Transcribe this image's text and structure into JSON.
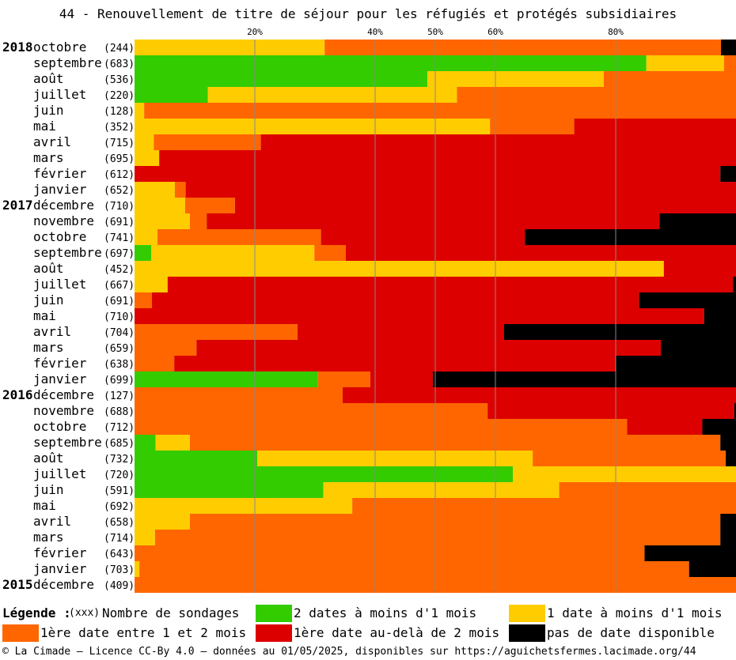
{
  "title": "44 - Renouvellement de titre de séjour pour les réfugiés et protégés subsidiaires",
  "legend": {
    "heading": "Légende :",
    "count_code": "(xxx)",
    "count_label": "Nombre de sondages",
    "items": [
      {
        "label": "2 dates à moins d'1 mois",
        "color": "#33cc00"
      },
      {
        "label": "1 date à moins d'1 mois",
        "color": "#ffcc00"
      },
      {
        "label": "1ère date entre 1 et 2 mois",
        "color": "#ff6600"
      },
      {
        "label": "1ère date au-delà de 2 mois",
        "color": "#dd0000"
      },
      {
        "label": "pas de date disponible",
        "color": "#000000"
      }
    ]
  },
  "footer": "© La Cimade — Licence CC-By 4.0 — données au 01/05/2025, disponibles sur https://aguichetsfermes.lacimade.org/44",
  "chart_data": {
    "type": "bar",
    "orientation": "horizontal-stacked-100",
    "xticks": [
      "20%",
      "40%",
      "50%",
      "60%",
      "80%"
    ],
    "xtick_values": [
      20,
      40,
      50,
      60,
      80
    ],
    "xlim": [
      0,
      100
    ],
    "grid": true,
    "series_names": [
      "2 dates à moins d'1 mois",
      "1 date à moins d'1 mois",
      "1ère date entre 1 et 2 mois",
      "1ère date au-delà de 2 mois",
      "pas de date disponible"
    ],
    "rows": [
      {
        "year": "2018",
        "month": "octobre",
        "count": "(244)",
        "values": [
          0,
          31.6,
          65.9,
          0,
          2.5
        ]
      },
      {
        "year": "",
        "month": "septembre",
        "count": "(683)",
        "values": [
          85.1,
          12.9,
          2.0,
          0,
          0
        ]
      },
      {
        "year": "",
        "month": "août",
        "count": "(536)",
        "values": [
          48.7,
          29.3,
          22.0,
          0,
          0
        ]
      },
      {
        "year": "",
        "month": "juillet",
        "count": "(220)",
        "values": [
          12.2,
          41.4,
          46.4,
          0,
          0
        ]
      },
      {
        "year": "",
        "month": "juin",
        "count": "(128)",
        "values": [
          0,
          1.6,
          98.4,
          0,
          0
        ]
      },
      {
        "year": "",
        "month": "mai",
        "count": "(352)",
        "values": [
          0,
          59.1,
          14.0,
          26.9,
          0
        ]
      },
      {
        "year": "",
        "month": "avril",
        "count": "(715)",
        "values": [
          0,
          3.2,
          17.8,
          79.0,
          0
        ]
      },
      {
        "year": "",
        "month": "mars",
        "count": "(695)",
        "values": [
          0,
          4.1,
          0,
          95.9,
          0
        ]
      },
      {
        "year": "",
        "month": "février",
        "count": "(612)",
        "values": [
          0,
          0,
          0,
          97.4,
          2.6
        ]
      },
      {
        "year": "",
        "month": "janvier",
        "count": "(652)",
        "values": [
          0,
          6.7,
          1.8,
          91.5,
          0
        ]
      },
      {
        "year": "2017",
        "month": "décembre",
        "count": "(710)",
        "values": [
          0,
          8.4,
          8.3,
          83.3,
          0
        ]
      },
      {
        "year": "",
        "month": "novembre",
        "count": "(691)",
        "values": [
          0,
          9.2,
          2.8,
          75.3,
          12.7
        ]
      },
      {
        "year": "",
        "month": "octobre",
        "count": "(741)",
        "values": [
          0,
          3.8,
          27.2,
          33.9,
          35.1
        ]
      },
      {
        "year": "",
        "month": "septembre",
        "count": "(697)",
        "values": [
          2.8,
          27.1,
          5.2,
          64.9,
          0
        ]
      },
      {
        "year": "",
        "month": "août",
        "count": "(452)",
        "values": [
          0,
          88.0,
          0,
          12.0,
          0
        ]
      },
      {
        "year": "",
        "month": "juillet",
        "count": "(667)",
        "values": [
          0,
          5.5,
          0,
          94.0,
          0.5
        ]
      },
      {
        "year": "",
        "month": "juin",
        "count": "(691)",
        "values": [
          0,
          0,
          2.9,
          81.0,
          16.1
        ]
      },
      {
        "year": "",
        "month": "mai",
        "count": "(710)",
        "values": [
          0,
          0,
          0,
          94.7,
          5.3
        ]
      },
      {
        "year": "",
        "month": "avril",
        "count": "(704)",
        "values": [
          0,
          0,
          27.1,
          34.3,
          38.6
        ]
      },
      {
        "year": "",
        "month": "mars",
        "count": "(659)",
        "values": [
          0,
          0,
          10.3,
          77.2,
          12.5
        ]
      },
      {
        "year": "",
        "month": "février",
        "count": "(638)",
        "values": [
          0,
          0,
          6.6,
          73.3,
          20.1
        ]
      },
      {
        "year": "",
        "month": "janvier",
        "count": "(699)",
        "values": [
          30.5,
          0,
          8.7,
          10.4,
          50.4
        ]
      },
      {
        "year": "2016",
        "month": "décembre",
        "count": "(127)",
        "values": [
          0,
          0,
          34.6,
          65.4,
          0
        ]
      },
      {
        "year": "",
        "month": "novembre",
        "count": "(688)",
        "values": [
          0,
          0,
          58.7,
          41.0,
          0.3
        ]
      },
      {
        "year": "",
        "month": "octobre",
        "count": "(712)",
        "values": [
          0,
          0,
          81.9,
          12.5,
          5.6
        ]
      },
      {
        "year": "",
        "month": "septembre",
        "count": "(685)",
        "values": [
          3.5,
          5.7,
          88.2,
          0,
          2.6
        ]
      },
      {
        "year": "",
        "month": "août",
        "count": "(732)",
        "values": [
          20.4,
          45.8,
          32.1,
          0,
          1.7
        ]
      },
      {
        "year": "",
        "month": "juillet",
        "count": "(720)",
        "values": [
          62.9,
          37.1,
          0,
          0,
          0
        ]
      },
      {
        "year": "",
        "month": "juin",
        "count": "(591)",
        "values": [
          31.4,
          39.2,
          29.4,
          0,
          0
        ]
      },
      {
        "year": "",
        "month": "mai",
        "count": "(692)",
        "values": [
          0,
          36.2,
          63.8,
          0,
          0
        ]
      },
      {
        "year": "",
        "month": "avril",
        "count": "(658)",
        "values": [
          0,
          9.2,
          88.2,
          0,
          2.6
        ]
      },
      {
        "year": "",
        "month": "mars",
        "count": "(714)",
        "values": [
          0,
          3.4,
          94.0,
          0,
          2.6
        ]
      },
      {
        "year": "",
        "month": "février",
        "count": "(643)",
        "values": [
          0,
          0,
          84.8,
          0,
          15.2
        ]
      },
      {
        "year": "",
        "month": "janvier",
        "count": "(703)",
        "values": [
          0,
          0.8,
          91.4,
          0,
          7.8
        ]
      },
      {
        "year": "2015",
        "month": "décembre",
        "count": "(409)",
        "values": [
          0,
          0,
          100,
          0,
          0
        ]
      }
    ]
  }
}
